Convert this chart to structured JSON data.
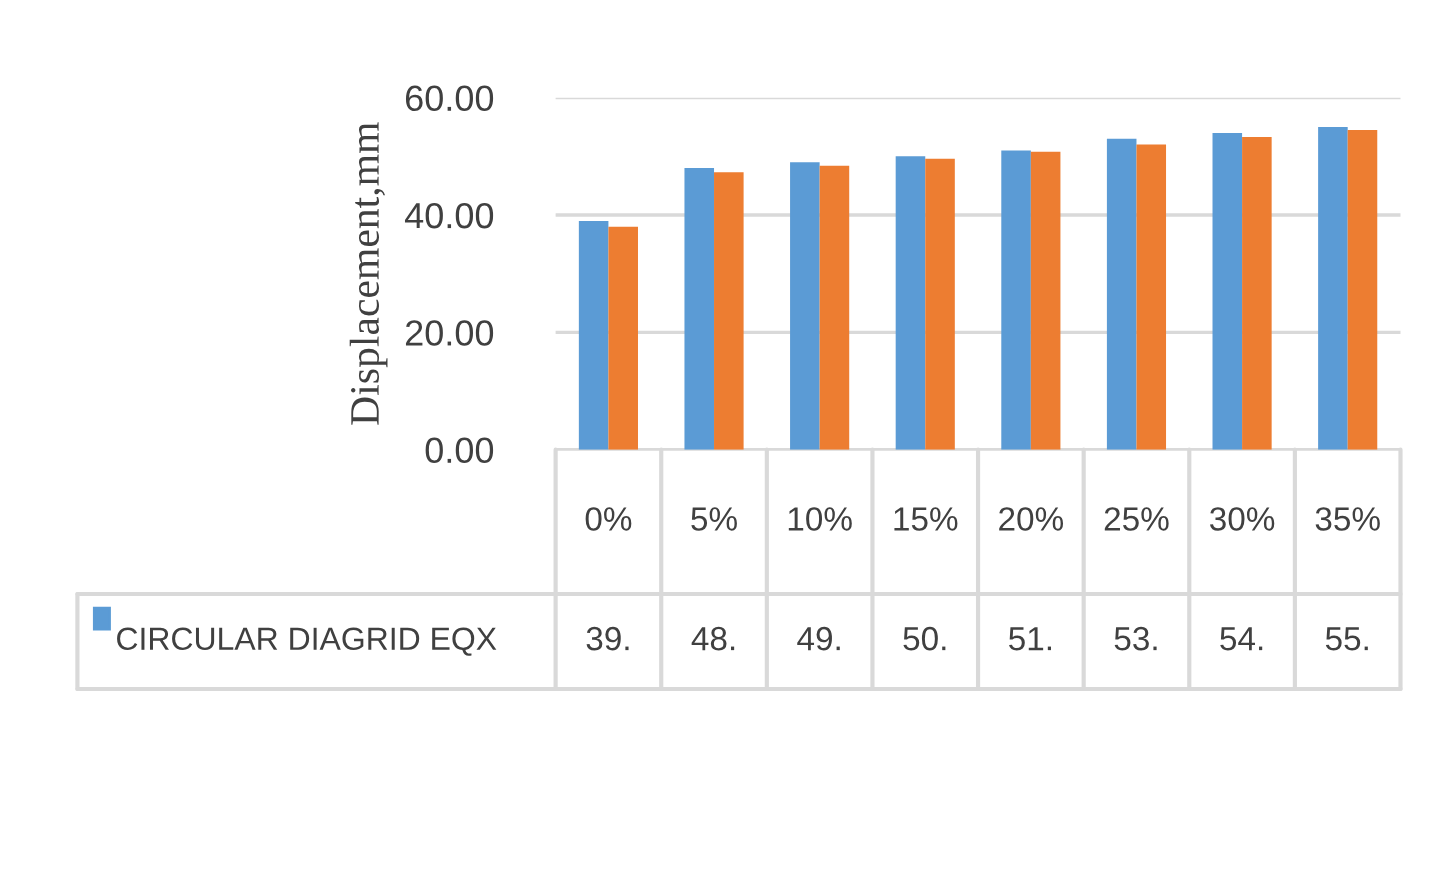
{
  "chart_data": {
    "type": "bar",
    "ylabel": "Displacement,mm",
    "categories": [
      "0%",
      "5%",
      "10%",
      "15%",
      "20%",
      "25%",
      "30%",
      "35%"
    ],
    "series": [
      {
        "name": "CIRCULAR DIAGRID EQX",
        "color": "#5b9bd5",
        "values": [
          39,
          48,
          49,
          50,
          51,
          53,
          54,
          55
        ],
        "value_labels": [
          "39.",
          "48.",
          "49.",
          "50.",
          "51.",
          "53.",
          "54.",
          "55."
        ]
      },
      {
        "color": "#ed7d31",
        "values": [
          38,
          47.3,
          48.4,
          49.6,
          50.8,
          52,
          53.3,
          54.5
        ]
      }
    ],
    "ylim": [
      0,
      60
    ],
    "yticks": [
      {
        "value": 0,
        "label": "0.00"
      },
      {
        "value": 20,
        "label": "20.00"
      },
      {
        "value": 40,
        "label": "40.00"
      },
      {
        "value": 60,
        "label": "60.00"
      }
    ],
    "grid": "y"
  }
}
